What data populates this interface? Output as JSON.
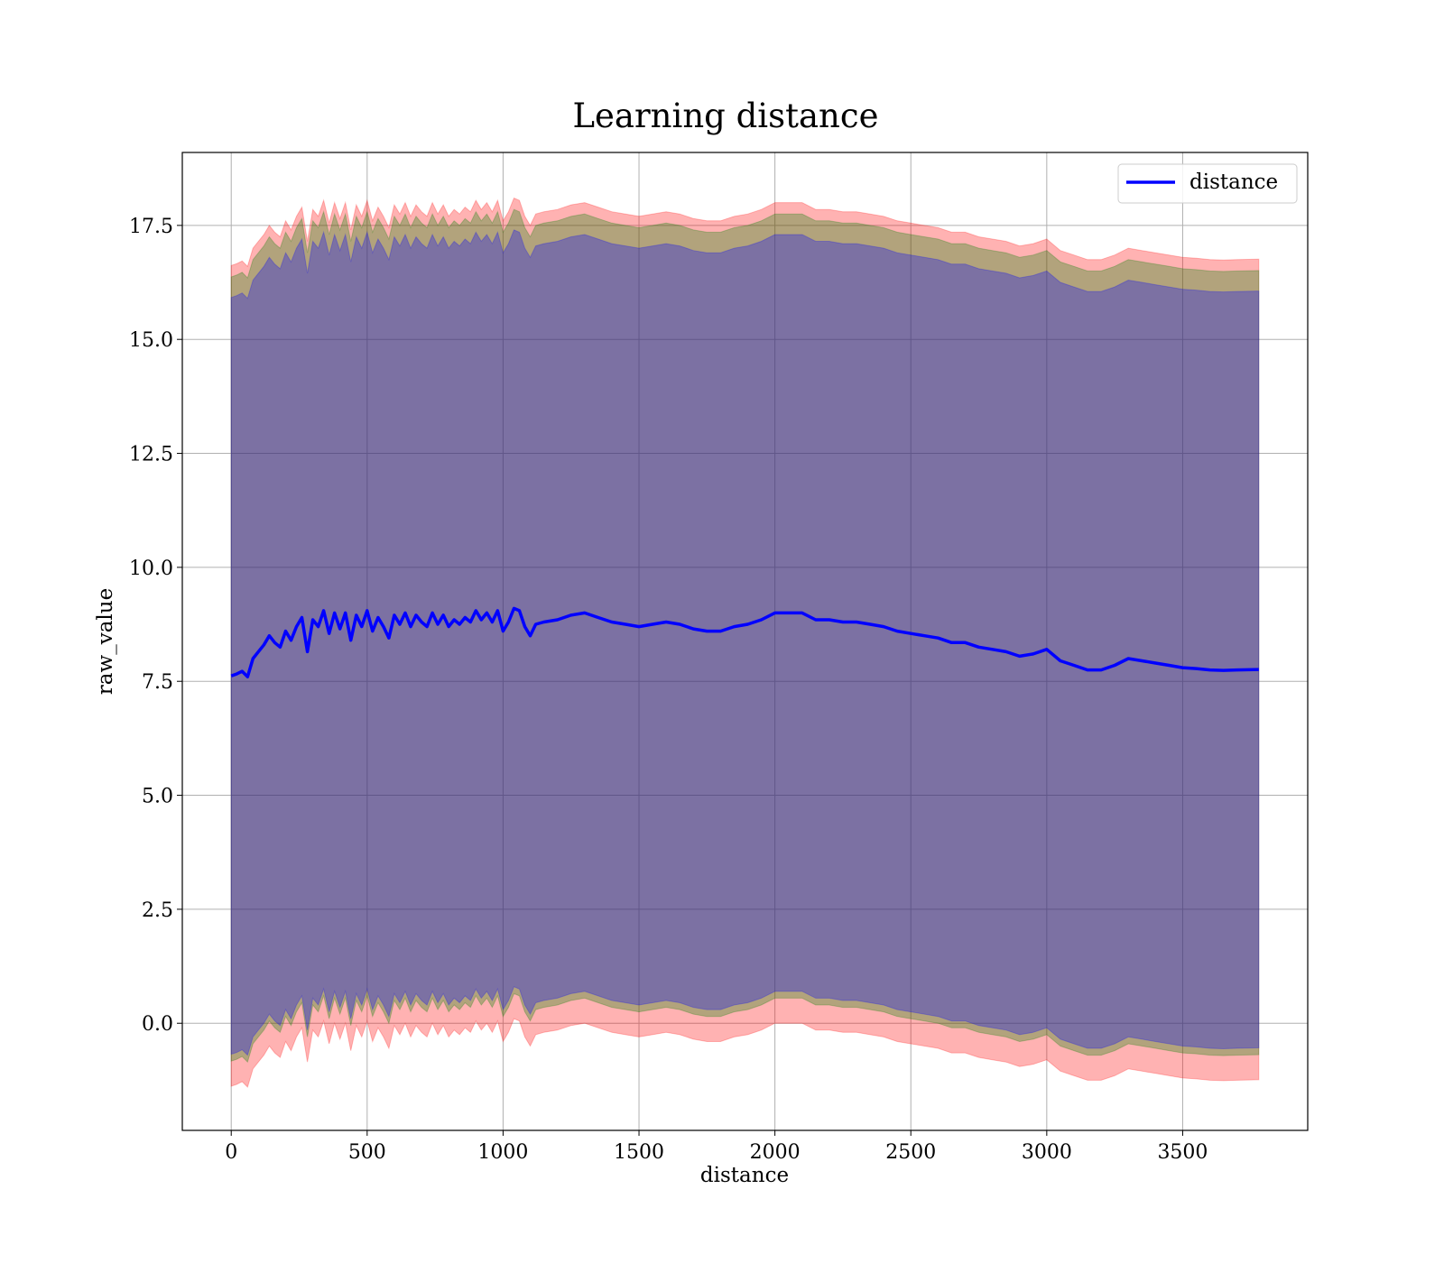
{
  "chart_data": {
    "type": "line",
    "title": "Learning distance",
    "xlabel": "distance",
    "ylabel": "raw_value",
    "xlim": [
      -180,
      3960
    ],
    "ylim": [
      -2.35,
      19.1
    ],
    "xticks": [
      0,
      500,
      1000,
      1500,
      2000,
      2500,
      3000,
      3500
    ],
    "yticks": [
      0.0,
      2.5,
      5.0,
      7.5,
      10.0,
      12.5,
      15.0,
      17.5
    ],
    "xtick_labels": [
      "0",
      "500",
      "1000",
      "1500",
      "2000",
      "2500",
      "3000",
      "3500"
    ],
    "ytick_labels": [
      "0.0",
      "2.5",
      "5.0",
      "7.5",
      "10.0",
      "12.5",
      "15.0",
      "17.5"
    ],
    "grid": true,
    "legend_position": "top-right",
    "series": [
      {
        "name": "distance",
        "color": "#0000ff",
        "x": [
          0,
          20,
          40,
          60,
          80,
          100,
          120,
          140,
          160,
          180,
          200,
          220,
          240,
          260,
          280,
          300,
          320,
          340,
          360,
          380,
          400,
          420,
          440,
          460,
          480,
          500,
          520,
          540,
          560,
          580,
          600,
          620,
          640,
          660,
          680,
          700,
          720,
          740,
          760,
          780,
          800,
          820,
          840,
          860,
          880,
          900,
          920,
          940,
          960,
          980,
          1000,
          1020,
          1040,
          1060,
          1080,
          1100,
          1120,
          1150,
          1200,
          1250,
          1300,
          1350,
          1400,
          1450,
          1500,
          1550,
          1600,
          1650,
          1700,
          1750,
          1800,
          1850,
          1900,
          1950,
          2000,
          2050,
          2100,
          2150,
          2200,
          2250,
          2300,
          2350,
          2400,
          2450,
          2500,
          2550,
          2600,
          2650,
          2700,
          2750,
          2800,
          2850,
          2900,
          2950,
          3000,
          3050,
          3100,
          3150,
          3200,
          3250,
          3300,
          3350,
          3400,
          3450,
          3500,
          3550,
          3600,
          3650,
          3700,
          3780
        ],
        "values": [
          7.62,
          7.66,
          7.72,
          7.6,
          8.0,
          8.15,
          8.3,
          8.5,
          8.35,
          8.25,
          8.6,
          8.4,
          8.7,
          8.9,
          8.15,
          8.85,
          8.7,
          9.05,
          8.55,
          9.0,
          8.65,
          9.0,
          8.4,
          8.95,
          8.7,
          9.05,
          8.6,
          8.9,
          8.7,
          8.45,
          8.95,
          8.75,
          9.0,
          8.7,
          8.95,
          8.8,
          8.7,
          9.0,
          8.75,
          8.95,
          8.7,
          8.85,
          8.75,
          8.9,
          8.8,
          9.05,
          8.85,
          9.0,
          8.8,
          9.05,
          8.6,
          8.8,
          9.1,
          9.05,
          8.7,
          8.5,
          8.75,
          8.8,
          8.85,
          8.95,
          9.0,
          8.9,
          8.8,
          8.75,
          8.7,
          8.75,
          8.8,
          8.75,
          8.65,
          8.6,
          8.6,
          8.7,
          8.75,
          8.85,
          9.0,
          9.0,
          9.0,
          8.85,
          8.85,
          8.8,
          8.8,
          8.75,
          8.7,
          8.6,
          8.55,
          8.5,
          8.45,
          8.35,
          8.35,
          8.25,
          8.2,
          8.15,
          8.05,
          8.1,
          8.2,
          7.95,
          7.85,
          7.75,
          7.75,
          7.85,
          8.0,
          7.95,
          7.9,
          7.85,
          7.8,
          7.78,
          7.75,
          7.74,
          7.75,
          7.76
        ]
      }
    ],
    "bands": [
      {
        "color": "#ff0000",
        "opacity": 0.3,
        "upper_offset": 9.0,
        "lower_offset": 9.0
      },
      {
        "color": "#008000",
        "opacity": 0.3,
        "upper_offset": 8.75,
        "lower_offset": 8.45
      },
      {
        "color": "#0000ff",
        "opacity": 0.3,
        "upper_offset": 8.3,
        "lower_offset": 8.3
      }
    ]
  }
}
